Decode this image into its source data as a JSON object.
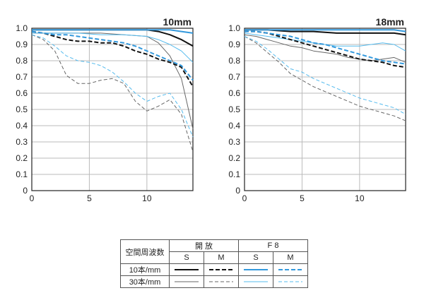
{
  "chart_data": [
    {
      "type": "line",
      "title": "10mm",
      "xlim": [
        0,
        14
      ],
      "ylim": [
        0,
        1.0
      ],
      "xticks": [
        "0",
        "5",
        "10"
      ],
      "yticks": [
        "0",
        "0.1",
        "0.2",
        "0.3",
        "0.4",
        "0.5",
        "0.6",
        "0.7",
        "0.8",
        "0.9",
        "1.0"
      ],
      "grid": true,
      "series": [
        {
          "key": "open-10-s",
          "color": "#111111",
          "width": 2,
          "dash": "",
          "x": [
            0,
            2,
            4,
            6,
            8,
            10,
            11,
            12,
            13,
            14
          ],
          "y": [
            0.99,
            0.99,
            0.99,
            0.99,
            0.99,
            0.99,
            0.98,
            0.96,
            0.93,
            0.89
          ]
        },
        {
          "key": "open-10-m",
          "color": "#111111",
          "width": 2,
          "dash": "6,3",
          "x": [
            0,
            1,
            2,
            3,
            4,
            5,
            6,
            7,
            8,
            9,
            10,
            11,
            12,
            13,
            14
          ],
          "y": [
            0.98,
            0.97,
            0.95,
            0.93,
            0.92,
            0.92,
            0.91,
            0.91,
            0.89,
            0.86,
            0.84,
            0.81,
            0.79,
            0.76,
            0.64
          ]
        },
        {
          "key": "f8-10-s",
          "color": "#3399dd",
          "width": 2,
          "dash": "",
          "x": [
            0,
            2,
            4,
            6,
            8,
            10,
            12,
            13,
            14
          ],
          "y": [
            0.99,
            0.99,
            0.99,
            0.99,
            0.99,
            0.99,
            0.99,
            0.98,
            0.97
          ]
        },
        {
          "key": "f8-10-m",
          "color": "#3399dd",
          "width": 2,
          "dash": "6,3",
          "x": [
            0,
            1,
            2,
            3,
            4,
            5,
            6,
            7,
            8,
            9,
            10,
            11,
            12,
            13,
            14
          ],
          "y": [
            0.98,
            0.97,
            0.96,
            0.96,
            0.95,
            0.94,
            0.93,
            0.92,
            0.91,
            0.89,
            0.86,
            0.83,
            0.8,
            0.77,
            0.68
          ]
        },
        {
          "key": "open-30-s",
          "color": "#666666",
          "width": 1,
          "dash": "",
          "x": [
            0,
            2,
            4,
            6,
            8,
            10,
            11,
            12,
            13,
            14
          ],
          "y": [
            0.97,
            0.97,
            0.97,
            0.97,
            0.96,
            0.95,
            0.91,
            0.83,
            0.69,
            0.38
          ]
        },
        {
          "key": "open-30-m",
          "color": "#666666",
          "width": 1,
          "dash": "5,3",
          "x": [
            0,
            1,
            2,
            3,
            4,
            5,
            6,
            7,
            8,
            9,
            10,
            11,
            12,
            13,
            14
          ],
          "y": [
            0.96,
            0.93,
            0.86,
            0.71,
            0.66,
            0.66,
            0.68,
            0.69,
            0.66,
            0.55,
            0.49,
            0.52,
            0.56,
            0.47,
            0.24
          ]
        },
        {
          "key": "f8-30-s",
          "color": "#55bbee",
          "width": 1,
          "dash": "",
          "x": [
            0,
            2,
            4,
            6,
            8,
            10,
            11,
            12,
            13,
            14
          ],
          "y": [
            0.97,
            0.97,
            0.97,
            0.96,
            0.96,
            0.95,
            0.93,
            0.9,
            0.86,
            0.79
          ]
        },
        {
          "key": "f8-30-m",
          "color": "#55bbee",
          "width": 1,
          "dash": "5,3",
          "x": [
            0,
            1,
            2,
            3,
            4,
            5,
            6,
            7,
            8,
            9,
            10,
            11,
            12,
            13,
            14
          ],
          "y": [
            0.96,
            0.94,
            0.89,
            0.83,
            0.8,
            0.79,
            0.77,
            0.73,
            0.67,
            0.6,
            0.55,
            0.58,
            0.6,
            0.5,
            0.33
          ]
        }
      ]
    },
    {
      "type": "line",
      "title": "18mm",
      "xlim": [
        0,
        14
      ],
      "ylim": [
        0,
        1.0
      ],
      "xticks": [
        "0",
        "5",
        "10"
      ],
      "yticks": [
        "0",
        "0.1",
        "0.2",
        "0.3",
        "0.4",
        "0.5",
        "0.6",
        "0.7",
        "0.8",
        "0.9",
        "1.0"
      ],
      "grid": true,
      "series": [
        {
          "key": "open-10-s",
          "color": "#111111",
          "width": 2,
          "dash": "",
          "x": [
            0,
            2,
            4,
            6,
            8,
            10,
            12,
            13,
            14
          ],
          "y": [
            0.99,
            0.99,
            0.98,
            0.98,
            0.97,
            0.97,
            0.97,
            0.97,
            0.96
          ]
        },
        {
          "key": "open-10-m",
          "color": "#111111",
          "width": 2,
          "dash": "6,3",
          "x": [
            0,
            1,
            2,
            3,
            4,
            5,
            6,
            7,
            8,
            9,
            10,
            11,
            12,
            13,
            14
          ],
          "y": [
            0.98,
            0.98,
            0.97,
            0.95,
            0.93,
            0.91,
            0.89,
            0.87,
            0.85,
            0.83,
            0.81,
            0.8,
            0.79,
            0.77,
            0.76
          ]
        },
        {
          "key": "f8-10-s",
          "color": "#3399dd",
          "width": 2,
          "dash": "",
          "x": [
            0,
            2,
            4,
            6,
            8,
            10,
            12,
            13,
            14
          ],
          "y": [
            0.99,
            0.99,
            0.99,
            0.99,
            0.99,
            0.99,
            0.99,
            0.99,
            0.98
          ]
        },
        {
          "key": "f8-10-m",
          "color": "#3399dd",
          "width": 2,
          "dash": "6,3",
          "x": [
            0,
            1,
            2,
            3,
            4,
            5,
            6,
            7,
            8,
            9,
            10,
            11,
            12,
            13,
            14
          ],
          "y": [
            0.98,
            0.98,
            0.97,
            0.96,
            0.95,
            0.93,
            0.91,
            0.9,
            0.88,
            0.86,
            0.84,
            0.82,
            0.8,
            0.79,
            0.78
          ]
        },
        {
          "key": "open-30-s",
          "color": "#666666",
          "width": 1,
          "dash": "",
          "x": [
            0,
            1,
            2,
            3,
            4,
            5,
            6,
            7,
            8,
            9,
            10,
            11,
            12,
            13,
            14
          ],
          "y": [
            0.96,
            0.95,
            0.93,
            0.91,
            0.89,
            0.88,
            0.86,
            0.85,
            0.84,
            0.82,
            0.81,
            0.8,
            0.81,
            0.82,
            0.79
          ]
        },
        {
          "key": "open-30-m",
          "color": "#666666",
          "width": 1,
          "dash": "5,3",
          "x": [
            0,
            1,
            2,
            3,
            4,
            5,
            6,
            7,
            8,
            9,
            10,
            11,
            12,
            13,
            14
          ],
          "y": [
            0.95,
            0.91,
            0.85,
            0.79,
            0.72,
            0.68,
            0.64,
            0.61,
            0.58,
            0.55,
            0.52,
            0.5,
            0.48,
            0.46,
            0.43
          ]
        },
        {
          "key": "f8-30-s",
          "color": "#55bbee",
          "width": 1,
          "dash": "",
          "x": [
            0,
            1,
            2,
            3,
            4,
            5,
            6,
            7,
            8,
            9,
            10,
            11,
            12,
            13,
            14
          ],
          "y": [
            0.97,
            0.96,
            0.95,
            0.94,
            0.93,
            0.92,
            0.91,
            0.9,
            0.89,
            0.89,
            0.89,
            0.9,
            0.91,
            0.9,
            0.86
          ]
        },
        {
          "key": "f8-30-m",
          "color": "#55bbee",
          "width": 1,
          "dash": "5,3",
          "x": [
            0,
            1,
            2,
            3,
            4,
            5,
            6,
            7,
            8,
            9,
            10,
            11,
            12,
            13,
            14
          ],
          "y": [
            0.95,
            0.92,
            0.87,
            0.81,
            0.75,
            0.73,
            0.69,
            0.66,
            0.63,
            0.6,
            0.57,
            0.55,
            0.53,
            0.51,
            0.47
          ]
        }
      ]
    }
  ],
  "legend": {
    "header_label": "空間周波数",
    "group_open": "開 放",
    "group_f8": "F 8",
    "col_s": "S",
    "col_m": "M",
    "row_10": "10本/mm",
    "row_30": "30本/mm"
  }
}
